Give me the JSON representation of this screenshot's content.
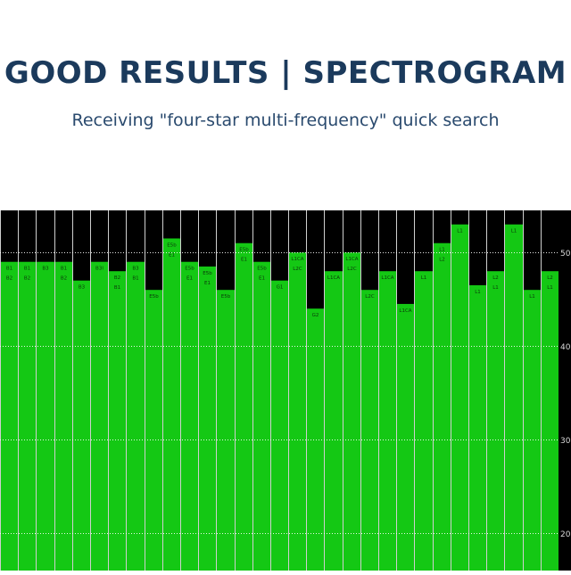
{
  "header": {
    "title": "GOOD RESULTS | SPECTROGRAM",
    "subtitle": "Receiving \"four-star multi-frequency\" quick search"
  },
  "chart_data": {
    "type": "bar",
    "title": "",
    "xlabel": "",
    "ylabel": "",
    "ylim": [
      16,
      54.5
    ],
    "y_ticks": [
      "50",
      "40",
      "30",
      "20"
    ],
    "y_tick_values": [
      50,
      40,
      30,
      20
    ],
    "grid": true,
    "bar_color": "#14c814",
    "background": "#000000",
    "bars": [
      {
        "value": 49.0,
        "labels": [
          "B1",
          "B2"
        ]
      },
      {
        "value": 49.0,
        "labels": [
          "B1",
          "B2"
        ]
      },
      {
        "value": 49.0,
        "labels": [
          "B3"
        ]
      },
      {
        "value": 49.0,
        "labels": [
          "B1",
          "B2"
        ]
      },
      {
        "value": 47.0,
        "labels": [
          "B3"
        ]
      },
      {
        "value": 49.0,
        "labels": [
          "B3I"
        ]
      },
      {
        "value": 48.0,
        "labels": [
          "B2",
          "B1"
        ]
      },
      {
        "value": 49.0,
        "labels": [
          "B3",
          "B1"
        ]
      },
      {
        "value": 46.0,
        "labels": [
          "E5b"
        ]
      },
      {
        "value": 51.5,
        "labels": [
          "E5b",
          "E1"
        ]
      },
      {
        "value": 49.0,
        "labels": [
          "E5b",
          "E1"
        ]
      },
      {
        "value": 48.5,
        "labels": [
          "E5b",
          "E1"
        ]
      },
      {
        "value": 46.0,
        "labels": [
          "E5b"
        ]
      },
      {
        "value": 51.0,
        "labels": [
          "E5b",
          "E1"
        ]
      },
      {
        "value": 49.0,
        "labels": [
          "E5b",
          "E1"
        ]
      },
      {
        "value": 47.0,
        "labels": [
          "G1"
        ]
      },
      {
        "value": 50.0,
        "labels": [
          "L1CA",
          "L2C"
        ]
      },
      {
        "value": 44.0,
        "labels": [
          "G2"
        ]
      },
      {
        "value": 48.0,
        "labels": [
          "L1CA"
        ]
      },
      {
        "value": 50.0,
        "labels": [
          "L1CA",
          "L2C"
        ]
      },
      {
        "value": 46.0,
        "labels": [
          "L2C"
        ]
      },
      {
        "value": 48.0,
        "labels": [
          "L1CA"
        ]
      },
      {
        "value": 44.5,
        "labels": [
          "L1CA"
        ]
      },
      {
        "value": 48.0,
        "labels": [
          "L1"
        ]
      },
      {
        "value": 51.0,
        "labels": [
          "L1",
          "L2"
        ]
      },
      {
        "value": 53.0,
        "labels": [
          "L1"
        ]
      },
      {
        "value": 46.5,
        "labels": [
          "L1"
        ]
      },
      {
        "value": 48.0,
        "labels": [
          "L2",
          "L1"
        ]
      },
      {
        "value": 53.0,
        "labels": [
          "L1"
        ]
      },
      {
        "value": 46.0,
        "labels": [
          "L1"
        ]
      },
      {
        "value": 48.0,
        "labels": [
          "L2",
          "L1"
        ]
      }
    ]
  }
}
